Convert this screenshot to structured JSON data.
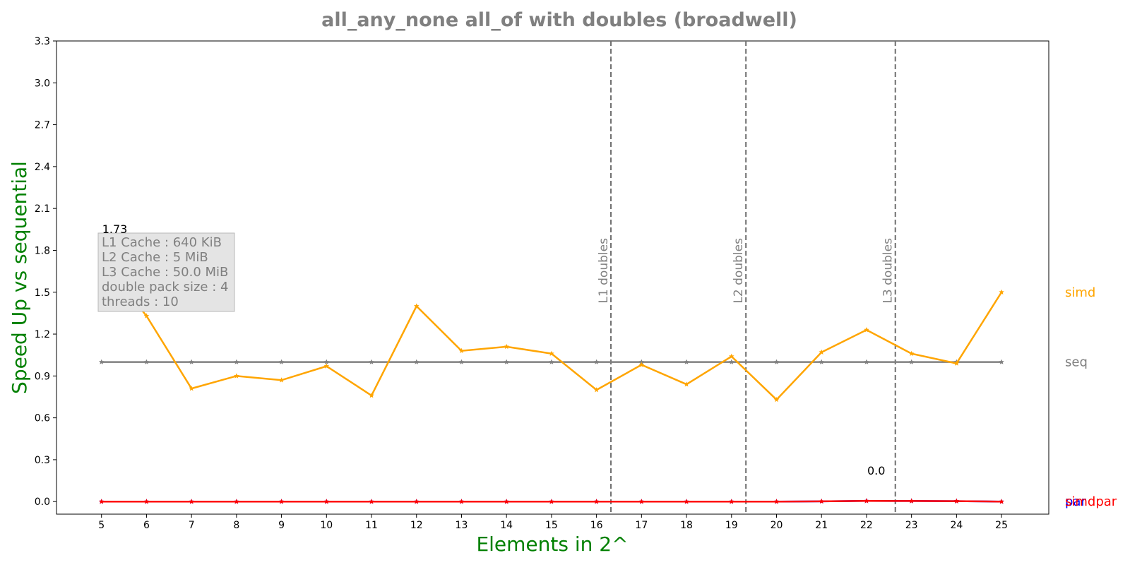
{
  "chart_data": {
    "type": "line",
    "title": "all_any_none all_of with doubles  (broadwell)",
    "xlabel": "Elements in 2^",
    "ylabel": "Speed Up vs sequential",
    "x": [
      5,
      6,
      7,
      8,
      9,
      10,
      11,
      12,
      13,
      14,
      15,
      16,
      17,
      18,
      19,
      20,
      21,
      22,
      23,
      24,
      25
    ],
    "xlim": [
      4,
      26.05
    ],
    "ylim": [
      -0.09,
      3.3
    ],
    "yticks": [
      "0.0",
      "0.3",
      "0.6",
      "0.9",
      "1.2",
      "1.5",
      "1.8",
      "2.1",
      "2.4",
      "2.7",
      "3.0",
      "3.3"
    ],
    "grid": false,
    "series": [
      {
        "name": "seq",
        "color": "#808080",
        "values": [
          1,
          1,
          1,
          1,
          1,
          1,
          1,
          1,
          1,
          1,
          1,
          1,
          1,
          1,
          1,
          1,
          1,
          1,
          1,
          1,
          1
        ]
      },
      {
        "name": "simd",
        "color": "#FFA500",
        "values": [
          1.73,
          1.33,
          0.81,
          0.9,
          0.87,
          0.97,
          0.76,
          1.4,
          1.08,
          1.11,
          1.06,
          0.8,
          0.98,
          0.84,
          1.04,
          0.73,
          1.07,
          1.23,
          1.06,
          0.99,
          1.5
        ]
      },
      {
        "name": "par",
        "color": "#0000FF",
        "values": [
          0,
          0,
          0,
          0,
          0,
          0,
          0,
          0,
          0,
          0,
          0,
          0,
          0,
          0,
          0,
          0,
          0.002,
          0.005,
          0.004,
          0.003,
          0
        ]
      },
      {
        "name": "simdpar",
        "color": "#FF0000",
        "values": [
          0,
          0,
          0,
          0,
          0,
          0,
          0,
          0,
          0,
          0,
          0,
          0,
          0,
          0,
          0,
          0,
          0.002,
          0.005,
          0.004,
          0.003,
          0
        ]
      }
    ],
    "vlines": [
      {
        "x": 16.32,
        "label": "L1 doubles"
      },
      {
        "x": 19.32,
        "label": "L2 doubles"
      },
      {
        "x": 22.64,
        "label": "L3 doubles"
      }
    ],
    "annotations": [
      {
        "x": 5,
        "y": 1.73,
        "text": "1.73"
      },
      {
        "x": 22,
        "y": 0.0,
        "text": "0.0"
      }
    ],
    "info_box": [
      "L1 Cache : 640 KiB",
      "L2 Cache : 5 MiB",
      "L3 Cache : 50.0 MiB",
      "double pack size : 4",
      "threads : 10"
    ]
  }
}
